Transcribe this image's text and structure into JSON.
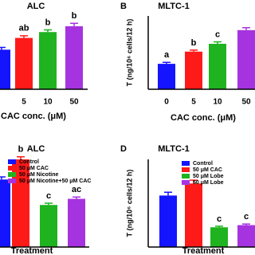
{
  "chart_data": [
    {
      "type": "bar",
      "title": "ALC",
      "x_label": "CAC conc. (μM)",
      "categories": [
        null,
        "5",
        "10",
        "50"
      ],
      "values": [
        5.4,
        7.0,
        7.8,
        8.6
      ],
      "errors": [
        0.3,
        0.3,
        0.3,
        0.4
      ],
      "annotations": [
        null,
        "ab",
        "b",
        "b"
      ],
      "colors": [
        "#1414ff",
        "#ff1a1a",
        "#1fb31f",
        "#a633e0"
      ],
      "ylim": [
        0,
        10
      ]
    },
    {
      "type": "bar",
      "panel_label": "B",
      "title": "MLTC-1",
      "y_label": "T (ng/10⁶ cells/12 h)",
      "x_label": "CAC conc. (μM)",
      "categories": [
        "0",
        "5",
        "10",
        "50"
      ],
      "values": [
        5.2,
        7.7,
        9.3,
        12.1
      ],
      "errors": [
        0.3,
        0.3,
        0.4,
        0.5
      ],
      "annotations": [
        "a",
        "b",
        "c",
        null
      ],
      "colors": [
        "#1414ff",
        "#ff1a1a",
        "#1fb31f",
        "#a633e0"
      ],
      "ylim": [
        0,
        15
      ]
    },
    {
      "type": "bar",
      "title": "ALC",
      "x_label": "Treatment",
      "legend": [
        "Control",
        "50 μM CAC",
        "50 μM Nicotine",
        "50 μM Nicotine+50 μM CAC"
      ],
      "values": [
        7.7,
        10.0,
        4.8,
        5.5
      ],
      "errors": [
        0.3,
        0.3,
        0.2,
        0.2
      ],
      "annotations": [
        null,
        "b",
        "c",
        "ac"
      ],
      "colors": [
        "#1414ff",
        "#ff1a1a",
        "#1fb31f",
        "#a633e0"
      ],
      "ylim": [
        0,
        12
      ]
    },
    {
      "type": "bar",
      "panel_label": "D",
      "title": "MLTC-1",
      "y_label": "T (ng/10⁶ cells/12 h)",
      "x_label": "Treatment",
      "legend": [
        "Control",
        "50 μM CAC",
        "50 μM Lobe",
        "50 μM Lobe"
      ],
      "values": [
        4.7,
        5.8,
        1.8,
        2.0
      ],
      "errors": [
        0.3,
        0.3,
        0.1,
        0.1
      ],
      "annotations": [
        null,
        null,
        "c",
        "c"
      ],
      "colors": [
        "#1414ff",
        "#ff1a1a",
        "#1fb31f",
        "#a633e0"
      ],
      "ylim": [
        0,
        8
      ]
    }
  ]
}
